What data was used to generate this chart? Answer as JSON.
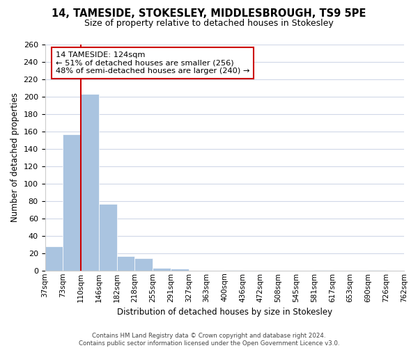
{
  "title": "14, TAMESIDE, STOKESLEY, MIDDLESBROUGH, TS9 5PE",
  "subtitle": "Size of property relative to detached houses in Stokesley",
  "xlabel": "Distribution of detached houses by size in Stokesley",
  "ylabel": "Number of detached properties",
  "bar_color": "#aac4e0",
  "bg_color": "#ffffff",
  "grid_color": "#d0d8e8",
  "vline_color": "#cc0000",
  "tick_labels": [
    "37sqm",
    "73sqm",
    "110sqm",
    "146sqm",
    "182sqm",
    "218sqm",
    "255sqm",
    "291sqm",
    "327sqm",
    "363sqm",
    "400sqm",
    "436sqm",
    "472sqm",
    "508sqm",
    "545sqm",
    "581sqm",
    "617sqm",
    "653sqm",
    "690sqm",
    "726sqm",
    "762sqm"
  ],
  "values": [
    28,
    157,
    203,
    77,
    17,
    14,
    3,
    2,
    0,
    0,
    1,
    0,
    0,
    0,
    0,
    1,
    0,
    0,
    1,
    0
  ],
  "ylim": [
    0,
    260
  ],
  "yticks": [
    0,
    20,
    40,
    60,
    80,
    100,
    120,
    140,
    160,
    180,
    200,
    220,
    240,
    260
  ],
  "vline_pos": 2,
  "annotation_title": "14 TAMESIDE: 124sqm",
  "annotation_line1": "← 51% of detached houses are smaller (256)",
  "annotation_line2": "48% of semi-detached houses are larger (240) →",
  "footer1": "Contains HM Land Registry data © Crown copyright and database right 2024.",
  "footer2": "Contains public sector information licensed under the Open Government Licence v3.0."
}
